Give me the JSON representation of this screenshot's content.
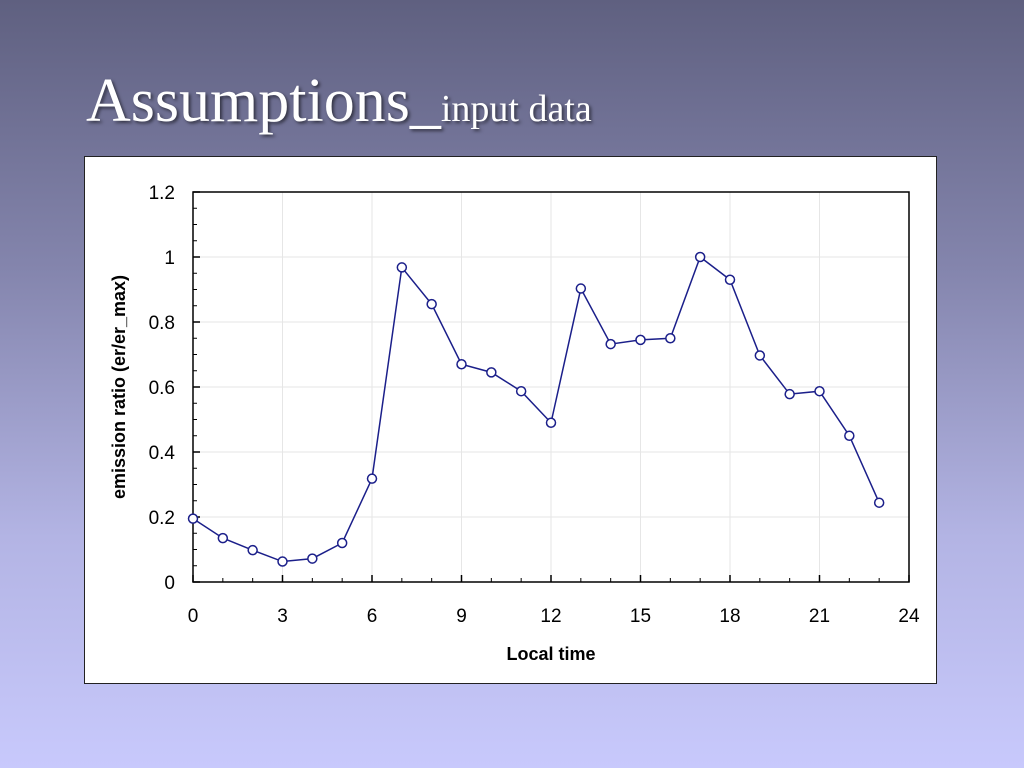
{
  "slide": {
    "title_main": "Assumptions_",
    "title_sub": "input data"
  },
  "colors": {
    "series": "#1b1f8a",
    "grid": "#e6e6e6",
    "axis": "#000000"
  },
  "chart_data": {
    "type": "line",
    "title": "",
    "xlabel": "Local time",
    "ylabel": "emission ratio (er/er_max)",
    "xlim": [
      0,
      24
    ],
    "ylim": [
      0,
      1.2
    ],
    "xticks": [
      0,
      3,
      6,
      9,
      12,
      15,
      18,
      21,
      24
    ],
    "xtick_labels": [
      "0",
      "3",
      "6",
      "9",
      "12",
      "15",
      "18",
      "21",
      "24"
    ],
    "yticks": [
      0,
      0.2,
      0.4,
      0.6,
      0.8,
      1,
      1.2
    ],
    "ytick_labels": [
      "0",
      "0.2",
      "0.4",
      "0.6",
      "0.8",
      "1",
      "1.2"
    ],
    "grid": true,
    "markers": "open-circle",
    "series": [
      {
        "x": [
          0,
          1,
          2,
          3,
          4,
          5,
          6,
          7,
          8,
          9,
          10,
          11,
          12,
          13,
          14,
          15,
          16,
          17,
          18,
          19,
          20,
          21,
          22,
          23
        ],
        "values": [
          0.195,
          0.135,
          0.098,
          0.063,
          0.072,
          0.12,
          0.318,
          0.968,
          0.855,
          0.67,
          0.645,
          0.587,
          0.49,
          0.903,
          0.732,
          0.745,
          0.75,
          1.0,
          0.93,
          0.697,
          0.578,
          0.587,
          0.45,
          0.244
        ]
      }
    ]
  }
}
